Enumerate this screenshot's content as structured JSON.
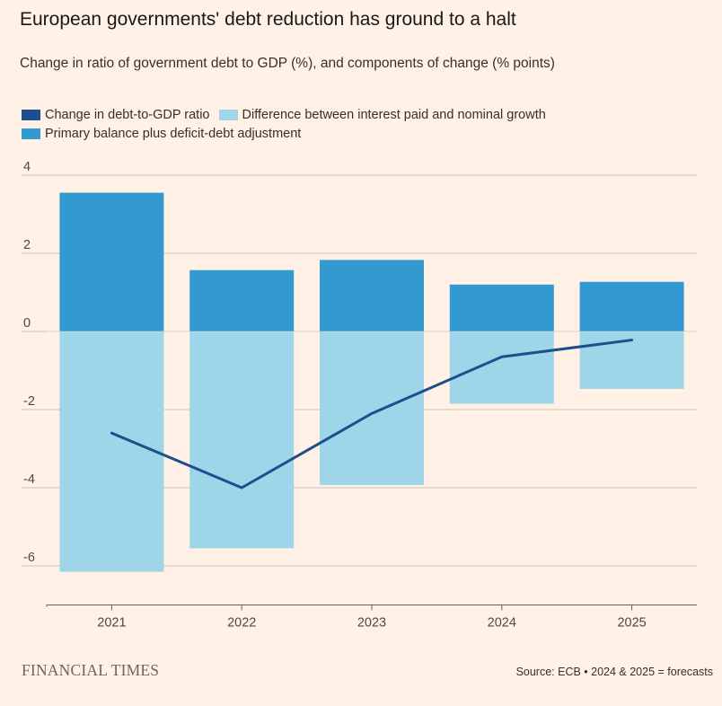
{
  "title": "European governments' debt reduction has ground to a halt",
  "subtitle": "Change in ratio of government debt to GDP (%), and components of change (% points)",
  "legend": {
    "ratio": "Change in debt-to-GDP ratio",
    "interest": "Difference between interest paid and nominal growth",
    "primary": "Primary balance plus deficit-debt adjustment"
  },
  "colors": {
    "ratio": "#1f4e8c",
    "interest": "#9fd5e8",
    "primary": "#3399d1",
    "grid": "#ccc1b7",
    "background": "#fff1e5"
  },
  "chart_data": {
    "type": "bar",
    "categories": [
      "2021",
      "2022",
      "2023",
      "2024",
      "2025"
    ],
    "series": [
      {
        "name": "Primary balance plus deficit-debt adjustment",
        "type": "bar",
        "values": [
          3.55,
          1.57,
          1.83,
          1.2,
          1.27
        ]
      },
      {
        "name": "Difference between interest paid and nominal growth",
        "type": "bar",
        "values": [
          -6.15,
          -5.55,
          -3.93,
          -1.85,
          -1.47
        ]
      },
      {
        "name": "Change in debt-to-GDP ratio",
        "type": "line",
        "values": [
          -2.6,
          -4.0,
          -2.1,
          -0.65,
          -0.22
        ]
      }
    ],
    "ylim": [
      -7,
      4
    ],
    "yticks": [
      4,
      2,
      0,
      -2,
      -4,
      -6
    ],
    "ytick_labels": [
      "4",
      "2",
      "0",
      "-2",
      "-4",
      "-6"
    ],
    "grid": true,
    "legend_position": "top-left",
    "stacked": true
  },
  "footer": {
    "logo": "FINANCIAL TIMES",
    "source": "Source: ECB • 2024 & 2025 = forecasts"
  }
}
